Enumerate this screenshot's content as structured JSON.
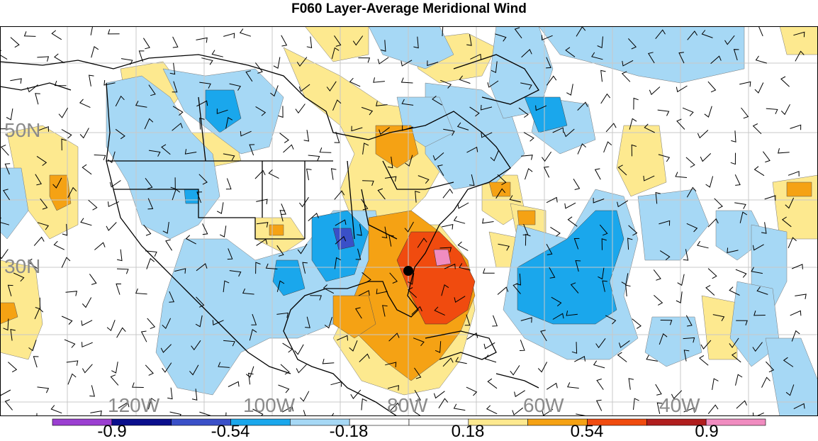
{
  "title": "F060 Layer-Average Meridional Wind",
  "lat_labels": [
    "50N",
    "30N"
  ],
  "lon_labels": [
    "120W",
    "100W",
    "80W",
    "60W",
    "40W"
  ],
  "colorbar": {
    "colors": [
      "#9b3fd1",
      "#0b0f8c",
      "#3a50c8",
      "#1aa7ec",
      "#a6d8f5",
      "#ffffff",
      "#ffffff",
      "#fde98f",
      "#f5a214",
      "#f04b0f",
      "#b01e1e",
      "#f08cc0"
    ],
    "labels": [
      "-0.9",
      "-0.54",
      "-0.18",
      "0.18",
      "0.54",
      "0.9"
    ]
  },
  "legend_colors": {
    "light_blue": "#a6d8f5",
    "medium_blue": "#1aa7ec",
    "dark_blue": "#3a50c8",
    "light_yellow": "#fde98f",
    "orange": "#f5a214",
    "red_orange": "#f04b0f",
    "pink": "#f08cc0"
  },
  "storm_marker": "storm-center-dot"
}
